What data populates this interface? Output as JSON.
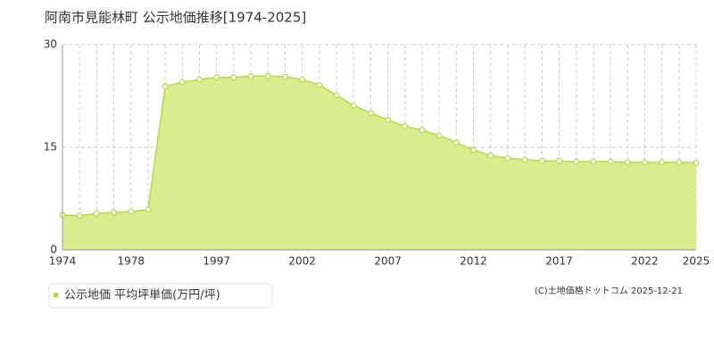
{
  "chart_data": {
    "type": "area",
    "title": "阿南市見能林町 公示地価推移[1974-2025]",
    "categories": [
      "1974",
      null,
      null,
      null,
      "1978",
      null,
      null,
      null,
      null,
      "1997",
      null,
      null,
      null,
      null,
      "2002",
      null,
      null,
      null,
      null,
      "2007",
      null,
      null,
      null,
      null,
      "2012",
      null,
      null,
      null,
      null,
      "2017",
      null,
      null,
      null,
      null,
      "2022",
      null,
      null,
      "2025"
    ],
    "series": [
      {
        "name": "公示地価 平均坪単価(万円/坪)",
        "color": "#b5d84a",
        "values": [
          5.1,
          5.0,
          5.3,
          5.5,
          5.6,
          5.9,
          23.9,
          24.5,
          24.9,
          25.2,
          25.2,
          25.4,
          25.4,
          25.3,
          24.9,
          24.1,
          22.6,
          21.1,
          20.0,
          19.0,
          18.1,
          17.5,
          16.7,
          15.7,
          14.6,
          13.8,
          13.4,
          13.2,
          13.0,
          13.0,
          12.9,
          12.9,
          12.9,
          12.8,
          12.8,
          12.8,
          12.8,
          12.7
        ]
      }
    ],
    "ylim": [
      0,
      30
    ],
    "yticks": [
      0,
      15,
      30
    ],
    "grid": true,
    "source": "(C)土地価格ドットコム 2025-12-21"
  }
}
